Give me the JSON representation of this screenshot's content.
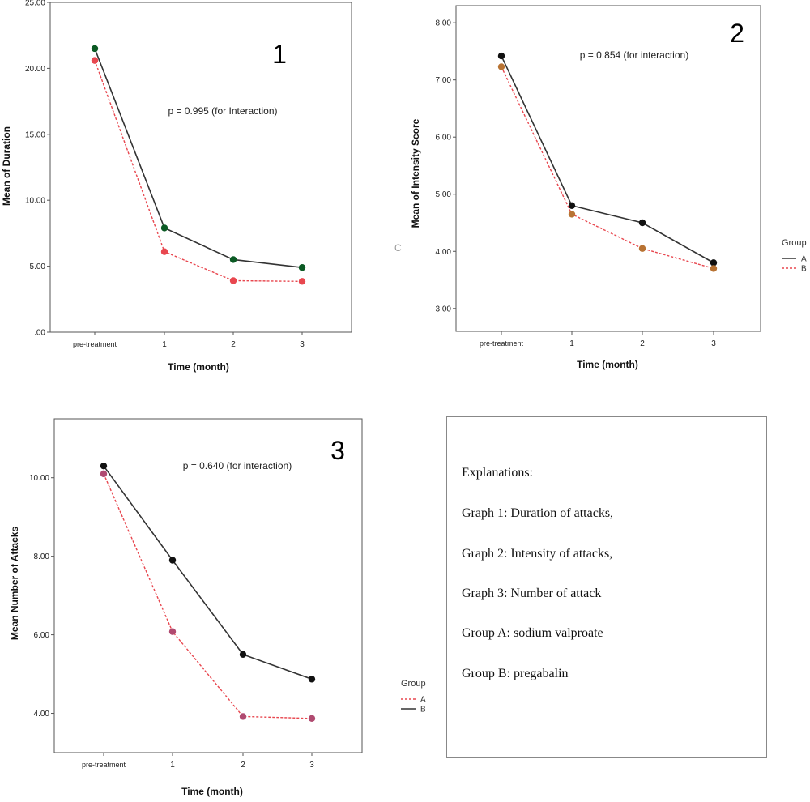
{
  "chart_data": [
    {
      "type": "line",
      "number_label": "1",
      "annotation": "p = 0.995 (for Interaction)",
      "xlabel": "Time (month)",
      "ylabel": "Mean of Duration",
      "categories": [
        "pre-treatment",
        "1",
        "2",
        "3"
      ],
      "ylim": [
        0,
        25
      ],
      "yticks": [
        ".00",
        "5.00",
        "10.00",
        "15.00",
        "20.00",
        "25.00"
      ],
      "ytick_values": [
        0,
        5,
        10,
        15,
        20,
        25
      ],
      "series": [
        {
          "values": [
            21.5,
            7.9,
            5.5,
            4.9
          ],
          "color": "#333333",
          "dash": false,
          "marker": "#0b5a24"
        },
        {
          "values": [
            20.6,
            6.1,
            3.9,
            3.85
          ],
          "color": "#e8474f",
          "dash": true,
          "marker": "#e8474f"
        }
      ]
    },
    {
      "type": "line",
      "number_label": "2",
      "annotation": "p = 0.854 (for interaction)",
      "xlabel": "Time (month)",
      "ylabel": "Mean of Intensity Score",
      "categories": [
        "pre-treatment",
        "1",
        "2",
        "3"
      ],
      "ylim": [
        2.6,
        8.3
      ],
      "yticks": [
        "3.00",
        "4.00",
        "5.00",
        "6.00",
        "7.00",
        "8.00"
      ],
      "ytick_values": [
        3,
        4,
        5,
        6,
        7,
        8
      ],
      "legend_title": "Group",
      "legend": [
        {
          "name": "A",
          "color": "#333333",
          "dash": false
        },
        {
          "name": "B",
          "color": "#e8474f",
          "dash": true
        }
      ],
      "series": [
        {
          "name": "A",
          "values": [
            7.42,
            4.8,
            4.5,
            3.8
          ],
          "color": "#333333",
          "dash": false,
          "marker": "#111111"
        },
        {
          "name": "B",
          "values": [
            7.23,
            4.65,
            4.05,
            3.7
          ],
          "color": "#e8474f",
          "dash": true,
          "marker": "#b87333"
        }
      ]
    },
    {
      "type": "line",
      "number_label": "3",
      "annotation": "p = 0.640 (for interaction)",
      "xlabel": "Time (month)",
      "ylabel": "Mean Number of Attacks",
      "categories": [
        "pre-treatment",
        "1",
        "2",
        "3"
      ],
      "ylim": [
        3.0,
        11.5
      ],
      "yticks": [
        "4.00",
        "6.00",
        "8.00",
        "10.00"
      ],
      "ytick_values": [
        4,
        6,
        8,
        10
      ],
      "legend_title": "Group",
      "legend": [
        {
          "name": "A",
          "color": "#e8474f",
          "dash": true
        },
        {
          "name": "B",
          "color": "#333333",
          "dash": false
        }
      ],
      "series": [
        {
          "name": "B",
          "values": [
            10.3,
            7.9,
            5.5,
            4.87
          ],
          "color": "#333333",
          "dash": false,
          "marker": "#111111"
        },
        {
          "name": "A",
          "values": [
            10.1,
            6.08,
            3.92,
            3.87
          ],
          "color": "#e8474f",
          "dash": true,
          "marker": "#b04a70"
        }
      ]
    }
  ],
  "stray_label": "C",
  "explanations": {
    "heading": "Explanations:",
    "lines": [
      " Graph 1: Duration of attacks,",
      "Graph 2: Intensity of attacks,",
      "Graph 3: Number of attack",
      "Group A: sodium valproate",
      " Group B: pregabalin"
    ]
  }
}
